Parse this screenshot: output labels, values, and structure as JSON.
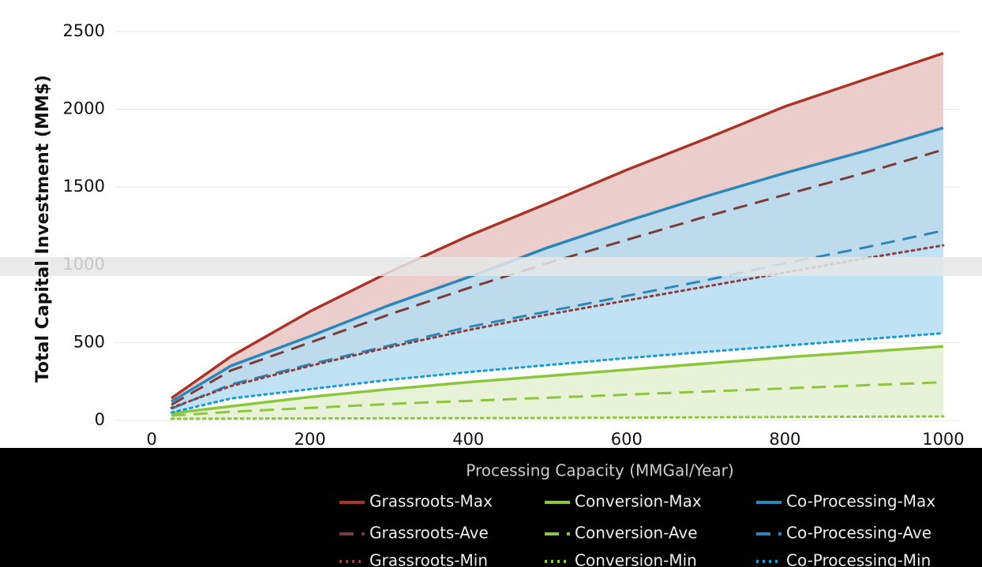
{
  "chart_data": {
    "type": "line",
    "x_label": "Processing Capacity (MMGal/Year)",
    "y_label": "Total Capital Investment (MM$)",
    "x": [
      25,
      100,
      200,
      300,
      400,
      500,
      600,
      700,
      800,
      900,
      1000
    ],
    "series": [
      {
        "name": "Grassroots-Max",
        "color": "#a8352a",
        "style": "solid",
        "values": [
          142,
          410,
          700,
          953,
          1185,
          1395,
          1610,
          1810,
          2018,
          2190,
          2360
        ]
      },
      {
        "name": "Conversion-Max",
        "color": "#8cc63f",
        "style": "solid",
        "values": [
          45,
          90,
          150,
          200,
          245,
          285,
          325,
          365,
          405,
          440,
          475
        ]
      },
      {
        "name": "Co-Processing-Max",
        "color": "#2e86b8",
        "style": "solid",
        "values": [
          120,
          350,
          540,
          740,
          920,
          1110,
          1280,
          1440,
          1590,
          1730,
          1880
        ]
      },
      {
        "name": "Grassroots-Ave",
        "color": "#7a3b3b",
        "style": "dashed",
        "values": [
          100,
          320,
          500,
          680,
          850,
          1010,
          1160,
          1310,
          1450,
          1590,
          1740
        ]
      },
      {
        "name": "Conversion-Ave",
        "color": "#8cc63f",
        "style": "dashed",
        "values": [
          30,
          55,
          80,
          105,
          125,
          145,
          165,
          185,
          205,
          225,
          245
        ]
      },
      {
        "name": "Co-Processing-Ave",
        "color": "#2e86b8",
        "style": "dashed",
        "values": [
          75,
          230,
          360,
          480,
          600,
          700,
          800,
          900,
          1010,
          1110,
          1220
        ]
      },
      {
        "name": "Grassroots-Min",
        "color": "#8a4040",
        "style": "dotted",
        "values": [
          80,
          220,
          350,
          470,
          580,
          680,
          770,
          860,
          950,
          1040,
          1125
        ]
      },
      {
        "name": "Conversion-Min",
        "color": "#8cc63f",
        "style": "dotted",
        "values": [
          10,
          11,
          12,
          13,
          14,
          15,
          17,
          19,
          21,
          23,
          25
        ]
      },
      {
        "name": "Co-Processing-Min",
        "color": "#1a9ad6",
        "style": "dotted",
        "values": [
          50,
          140,
          200,
          260,
          310,
          355,
          400,
          440,
          480,
          520,
          560
        ]
      }
    ],
    "bands": [
      {
        "upper": "Grassroots-Max",
        "lower": "Grassroots-Min",
        "color": "#e8c5c2"
      },
      {
        "upper": "Co-Processing-Max",
        "lower": "Co-Processing-Min",
        "color": "#b5ddf2"
      },
      {
        "upper": "Conversion-Max",
        "lower": "Conversion-Min",
        "color": "#e4f0cf"
      }
    ],
    "xlim": [
      -47,
      1020
    ],
    "ylim": [
      -60,
      2650
    ],
    "xticks": [
      0,
      200,
      400,
      600,
      800,
      1000
    ],
    "yticks": [
      0,
      500,
      1000,
      1500,
      2000,
      2500
    ],
    "grid": true
  }
}
